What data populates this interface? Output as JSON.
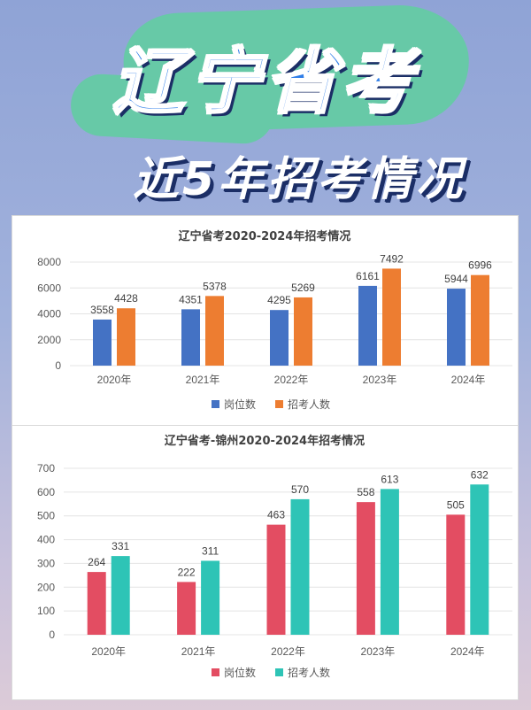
{
  "header": {
    "title": "辽宁省考",
    "subtitle": "近5年招考情况"
  },
  "chart_data": [
    {
      "type": "bar",
      "title": "辽宁省考2020-2024年招考情况",
      "categories": [
        "2020年",
        "2021年",
        "2022年",
        "2023年",
        "2024年"
      ],
      "series": [
        {
          "name": "岗位数",
          "values": [
            3558,
            4351,
            4295,
            6161,
            5944
          ],
          "color": "#4472c4"
        },
        {
          "name": "招考人数",
          "values": [
            4428,
            5378,
            5269,
            7492,
            6996
          ],
          "color": "#ed7d31"
        }
      ],
      "ylim": [
        0,
        8000
      ],
      "yticks": [
        0,
        2000,
        4000,
        6000,
        8000
      ],
      "grid": true,
      "legend": "bottom"
    },
    {
      "type": "bar",
      "title": "辽宁省考-锦州2020-2024年招考情况",
      "categories": [
        "2020年",
        "2021年",
        "2022年",
        "2023年",
        "2024年"
      ],
      "series": [
        {
          "name": "岗位数",
          "values": [
            264,
            222,
            463,
            558,
            505
          ],
          "color": "#e34d62"
        },
        {
          "name": "招考人数",
          "values": [
            331,
            311,
            570,
            613,
            632
          ],
          "color": "#2ec4b6"
        }
      ],
      "ylim": [
        0,
        700
      ],
      "yticks": [
        0,
        100,
        200,
        300,
        400,
        500,
        600,
        700
      ],
      "grid": true,
      "legend": "bottom"
    }
  ]
}
